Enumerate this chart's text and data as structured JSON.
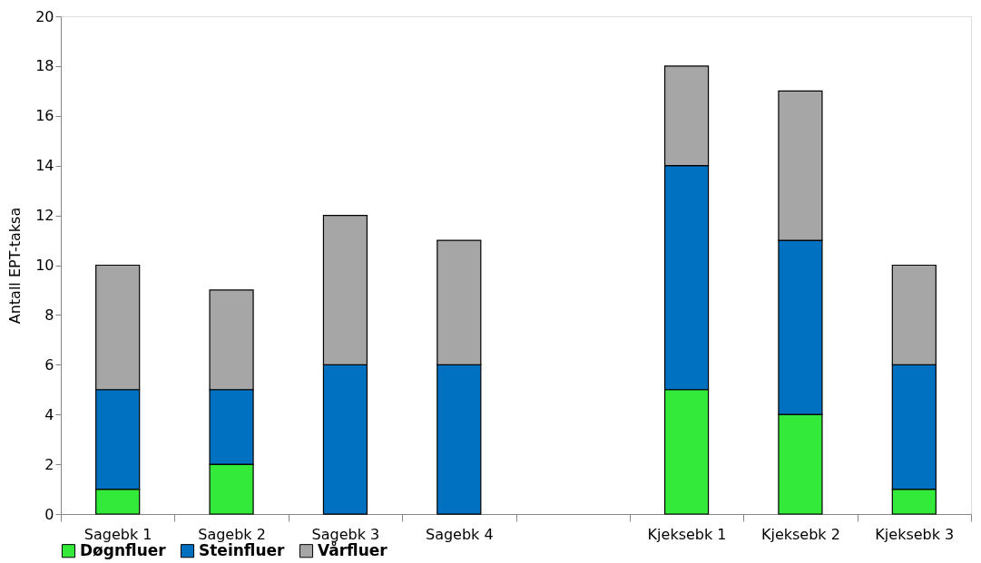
{
  "chart_data": {
    "type": "bar",
    "stacked": true,
    "ylabel": "Antall  EPT-taksa",
    "categories": [
      "Sagebk 1",
      "Sagebk 2",
      "Sagebk 3",
      "Sagebk 4",
      null,
      "Kjeksebk 1",
      "Kjeksebk 2",
      "Kjeksebk 3"
    ],
    "series": [
      {
        "name": "Døgnfluer",
        "color": "#33ea3a",
        "values": [
          1,
          2,
          0,
          0,
          null,
          5,
          4,
          1
        ]
      },
      {
        "name": "Steinfluer",
        "color": "#0070c0",
        "values": [
          4,
          3,
          6,
          6,
          null,
          9,
          7,
          5
        ]
      },
      {
        "name": "Vårfluer",
        "color": "#a6a6a6",
        "values": [
          5,
          4,
          6,
          5,
          null,
          4,
          6,
          4
        ]
      }
    ],
    "ylim": [
      0,
      20
    ],
    "yticks": [
      0,
      2,
      4,
      6,
      8,
      10,
      12,
      14,
      16,
      18,
      20
    ],
    "grid": false,
    "legend": "bottom"
  }
}
